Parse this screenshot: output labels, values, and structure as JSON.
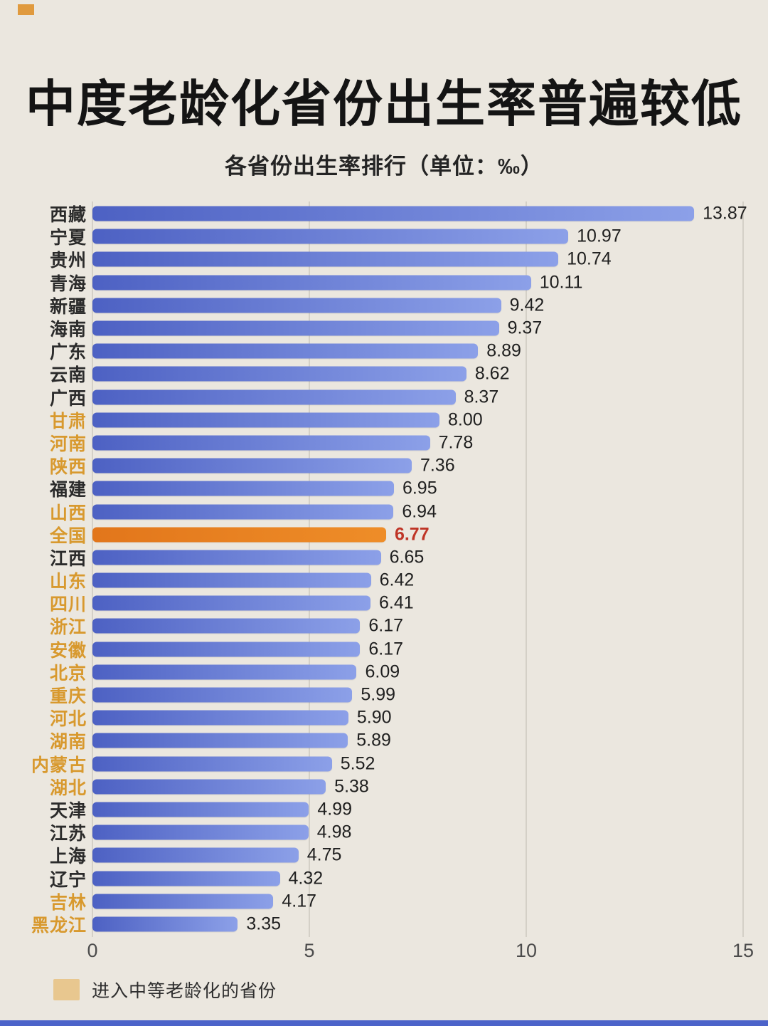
{
  "header": {
    "title": "中度老龄化省份出生率普遍较低",
    "subtitle": "各省份出生率排行（单位：‰）"
  },
  "chart_data": {
    "type": "bar",
    "orientation": "horizontal",
    "title": "中度老龄化省份出生率普遍较低",
    "subtitle": "各省份出生率排行（单位：‰）",
    "unit": "‰",
    "xlim": [
      0,
      15
    ],
    "x_tick_labels": [
      "0",
      "5",
      "10",
      "15"
    ],
    "grid": "vertical",
    "bars": [
      {
        "label": "西藏",
        "value": 13.87,
        "display": "13.87",
        "moderately_aging": false,
        "national": false
      },
      {
        "label": "宁夏",
        "value": 10.97,
        "display": "10.97",
        "moderately_aging": false,
        "national": false
      },
      {
        "label": "贵州",
        "value": 10.74,
        "display": "10.74",
        "moderately_aging": false,
        "national": false
      },
      {
        "label": "青海",
        "value": 10.11,
        "display": "10.11",
        "moderately_aging": false,
        "national": false
      },
      {
        "label": "新疆",
        "value": 9.42,
        "display": "9.42",
        "moderately_aging": false,
        "national": false
      },
      {
        "label": "海南",
        "value": 9.37,
        "display": "9.37",
        "moderately_aging": false,
        "national": false
      },
      {
        "label": "广东",
        "value": 8.89,
        "display": "8.89",
        "moderately_aging": false,
        "national": false
      },
      {
        "label": "云南",
        "value": 8.62,
        "display": "8.62",
        "moderately_aging": false,
        "national": false
      },
      {
        "label": "广西",
        "value": 8.37,
        "display": "8.37",
        "moderately_aging": false,
        "national": false
      },
      {
        "label": "甘肃",
        "value": 8.0,
        "display": "8.00",
        "moderately_aging": true,
        "national": false
      },
      {
        "label": "河南",
        "value": 7.78,
        "display": "7.78",
        "moderately_aging": true,
        "national": false
      },
      {
        "label": "陕西",
        "value": 7.36,
        "display": "7.36",
        "moderately_aging": true,
        "national": false
      },
      {
        "label": "福建",
        "value": 6.95,
        "display": "6.95",
        "moderately_aging": false,
        "national": false
      },
      {
        "label": "山西",
        "value": 6.94,
        "display": "6.94",
        "moderately_aging": true,
        "national": false
      },
      {
        "label": "全国",
        "value": 6.77,
        "display": "6.77",
        "moderately_aging": true,
        "national": true
      },
      {
        "label": "江西",
        "value": 6.65,
        "display": "6.65",
        "moderately_aging": false,
        "national": false
      },
      {
        "label": "山东",
        "value": 6.42,
        "display": "6.42",
        "moderately_aging": true,
        "national": false
      },
      {
        "label": "四川",
        "value": 6.41,
        "display": "6.41",
        "moderately_aging": true,
        "national": false
      },
      {
        "label": "浙江",
        "value": 6.17,
        "display": "6.17",
        "moderately_aging": true,
        "national": false
      },
      {
        "label": "安徽",
        "value": 6.17,
        "display": "6.17",
        "moderately_aging": true,
        "national": false
      },
      {
        "label": "北京",
        "value": 6.09,
        "display": "6.09",
        "moderately_aging": true,
        "national": false
      },
      {
        "label": "重庆",
        "value": 5.99,
        "display": "5.99",
        "moderately_aging": true,
        "national": false
      },
      {
        "label": "河北",
        "value": 5.9,
        "display": "5.90",
        "moderately_aging": true,
        "national": false
      },
      {
        "label": "湖南",
        "value": 5.89,
        "display": "5.89",
        "moderately_aging": true,
        "national": false
      },
      {
        "label": "内蒙古",
        "value": 5.52,
        "display": "5.52",
        "moderately_aging": true,
        "national": false
      },
      {
        "label": "湖北",
        "value": 5.38,
        "display": "5.38",
        "moderately_aging": true,
        "national": false
      },
      {
        "label": "天津",
        "value": 4.99,
        "display": "4.99",
        "moderately_aging": false,
        "national": false
      },
      {
        "label": "江苏",
        "value": 4.98,
        "display": "4.98",
        "moderately_aging": false,
        "national": false
      },
      {
        "label": "上海",
        "value": 4.75,
        "display": "4.75",
        "moderately_aging": false,
        "national": false
      },
      {
        "label": "辽宁",
        "value": 4.32,
        "display": "4.32",
        "moderately_aging": false,
        "national": false
      },
      {
        "label": "吉林",
        "value": 4.17,
        "display": "4.17",
        "moderately_aging": true,
        "national": false
      },
      {
        "label": "黑龙江",
        "value": 3.35,
        "display": "3.35",
        "moderately_aging": true,
        "national": false
      }
    ],
    "legend": {
      "label": "进入中等老龄化的省份"
    }
  },
  "colors": {
    "background": "#ebe7df",
    "bar_gradient_start": "#4d61c3",
    "bar_gradient_end": "#8ca0e8",
    "national_bar": "#e8811c",
    "aging_label": "#d8992e",
    "national_value": "#bf3527",
    "legend_swatch": "#e8c78f",
    "bottom_strip": "#4c63c9",
    "corner_accent": "#e09a3e"
  }
}
